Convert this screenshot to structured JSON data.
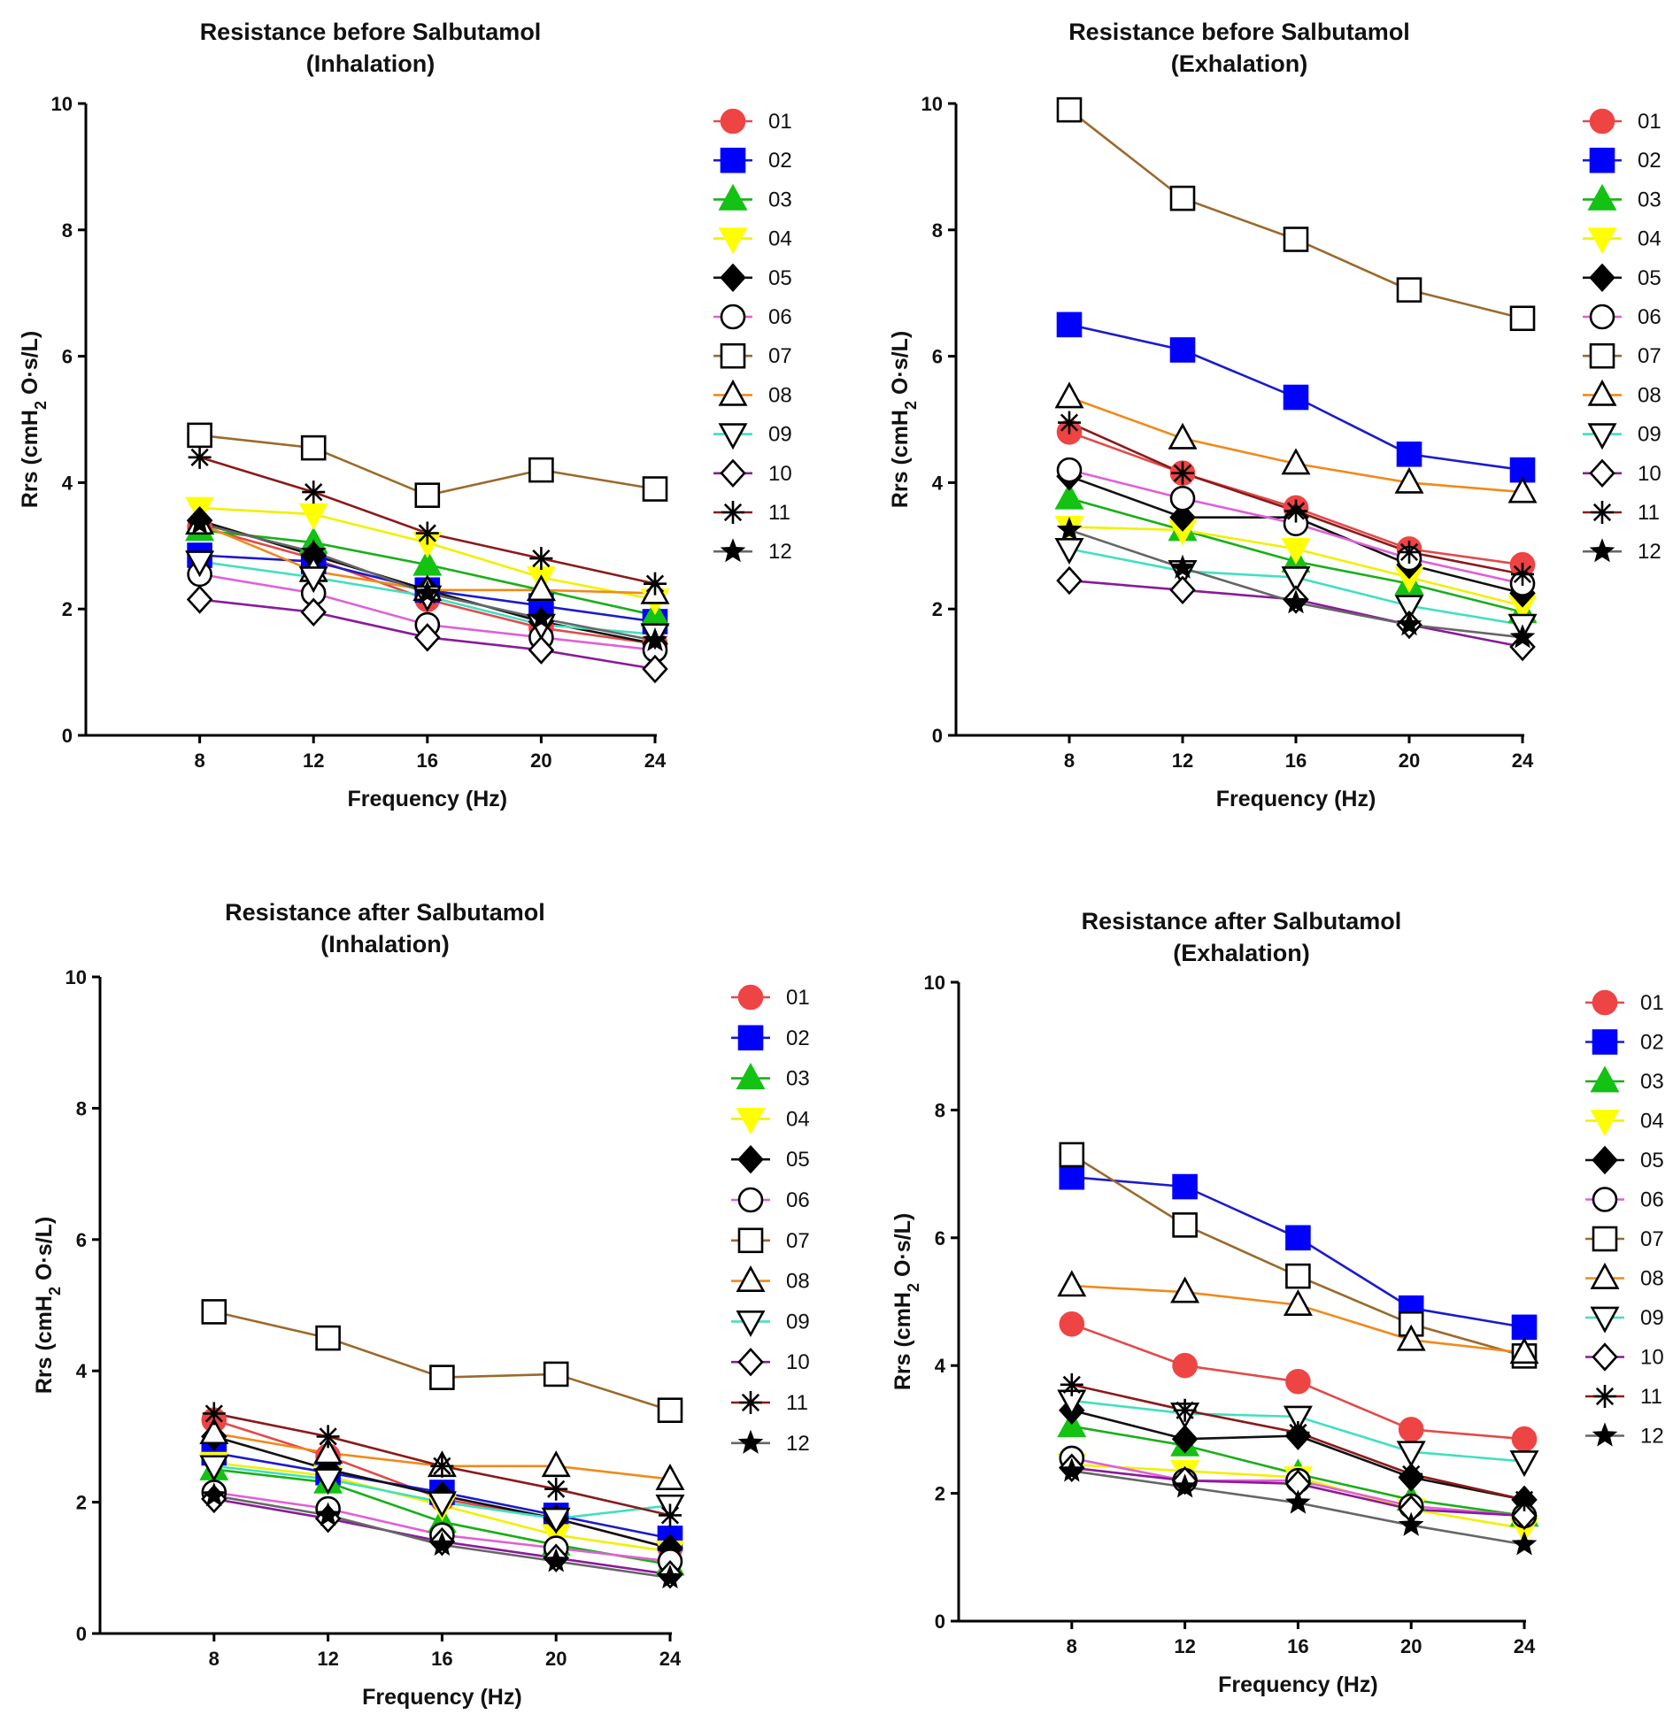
{
  "figure": {
    "ylabel_prefix": "Rrs (cmH",
    "ylabel_sub": "2",
    "ylabel_suffix": " O·s/L)"
  },
  "series_styles": [
    {
      "id": "01",
      "color": "#ef4444",
      "line": "#e24a4a",
      "marker": "circle",
      "filled": true
    },
    {
      "id": "02",
      "color": "#0000ff",
      "line": "#1b1bcc",
      "marker": "square",
      "filled": true
    },
    {
      "id": "03",
      "color": "#13c213",
      "line": "#17b017",
      "marker": "triangle",
      "filled": true
    },
    {
      "id": "04",
      "color": "#ffff00",
      "line": "#f0f000",
      "marker": "triangle-down",
      "filled": true
    },
    {
      "id": "05",
      "color": "#000000",
      "line": "#111111",
      "marker": "diamond",
      "filled": true
    },
    {
      "id": "06",
      "color": "#000000",
      "line": "#e060d8",
      "marker": "circle",
      "filled": false
    },
    {
      "id": "07",
      "color": "#000000",
      "line": "#9b6a2b",
      "marker": "square",
      "filled": false
    },
    {
      "id": "08",
      "color": "#000000",
      "line": "#f08a1a",
      "marker": "triangle",
      "filled": false
    },
    {
      "id": "09",
      "color": "#000000",
      "line": "#40e0c0",
      "marker": "triangle-down",
      "filled": false
    },
    {
      "id": "10",
      "color": "#000000",
      "line": "#8a1a9a",
      "marker": "diamond",
      "filled": false
    },
    {
      "id": "11",
      "color": "#000000",
      "line": "#8b1a1a",
      "marker": "asterisk",
      "filled": false
    },
    {
      "id": "12",
      "color": "#000000",
      "line": "#666666",
      "marker": "star",
      "filled": true
    }
  ],
  "chart_data": [
    {
      "type": "line",
      "title": [
        "Resistance before Salbutamol",
        "(Inhalation)"
      ],
      "xlabel": "Frequency (Hz)",
      "ylabel": "Rrs (cmH2 O·s/L)",
      "x": [
        8,
        12,
        16,
        20,
        24
      ],
      "xlim": [
        4,
        24
      ],
      "ylim": [
        0,
        10
      ],
      "yticks": [
        0,
        2,
        4,
        6,
        8,
        10
      ],
      "legend": "right",
      "series": [
        {
          "name": "01",
          "values": [
            3.3,
            2.8,
            2.15,
            1.7,
            1.45
          ]
        },
        {
          "name": "02",
          "values": [
            2.85,
            2.75,
            2.3,
            2.05,
            1.8
          ]
        },
        {
          "name": "03",
          "values": [
            3.25,
            3.05,
            2.7,
            2.3,
            1.9
          ]
        },
        {
          "name": "04",
          "values": [
            3.6,
            3.5,
            3.05,
            2.5,
            2.15
          ]
        },
        {
          "name": "05",
          "values": [
            3.4,
            2.85,
            2.3,
            1.8,
            1.45
          ]
        },
        {
          "name": "06",
          "values": [
            2.55,
            2.25,
            1.75,
            1.55,
            1.35
          ]
        },
        {
          "name": "07",
          "values": [
            4.75,
            4.55,
            3.8,
            4.2,
            3.9
          ]
        },
        {
          "name": "08",
          "values": [
            3.35,
            2.6,
            2.3,
            2.3,
            2.25
          ]
        },
        {
          "name": "09",
          "values": [
            2.75,
            2.5,
            2.2,
            1.75,
            1.6
          ]
        },
        {
          "name": "10",
          "values": [
            2.15,
            1.95,
            1.55,
            1.35,
            1.05
          ]
        },
        {
          "name": "11",
          "values": [
            4.4,
            3.85,
            3.2,
            2.8,
            2.4
          ]
        },
        {
          "name": "12",
          "values": [
            3.35,
            2.9,
            2.25,
            1.85,
            1.5
          ]
        }
      ]
    },
    {
      "type": "line",
      "title": [
        "Resistance before Salbutamol",
        "(Exhalation)"
      ],
      "xlabel": "Frequency (Hz)",
      "ylabel": "Rrs (cmH2 O·s/L)",
      "x": [
        8,
        12,
        16,
        20,
        24
      ],
      "xlim": [
        4,
        24
      ],
      "ylim": [
        0,
        10
      ],
      "yticks": [
        0,
        2,
        4,
        6,
        8,
        10
      ],
      "legend": "right",
      "series": [
        {
          "name": "01",
          "values": [
            4.8,
            4.15,
            3.6,
            2.95,
            2.7
          ]
        },
        {
          "name": "02",
          "values": [
            6.5,
            6.1,
            5.35,
            4.45,
            4.2
          ]
        },
        {
          "name": "03",
          "values": [
            3.75,
            3.25,
            2.75,
            2.4,
            1.95
          ]
        },
        {
          "name": "04",
          "values": [
            3.3,
            3.25,
            2.95,
            2.5,
            2.05
          ]
        },
        {
          "name": "05",
          "values": [
            4.1,
            3.45,
            3.45,
            2.7,
            2.25
          ]
        },
        {
          "name": "06",
          "values": [
            4.2,
            3.75,
            3.35,
            2.8,
            2.4
          ]
        },
        {
          "name": "07",
          "values": [
            9.9,
            8.5,
            7.85,
            7.05,
            6.6
          ]
        },
        {
          "name": "08",
          "values": [
            5.35,
            4.7,
            4.3,
            4.0,
            3.85
          ]
        },
        {
          "name": "09",
          "values": [
            2.95,
            2.6,
            2.5,
            2.05,
            1.75
          ]
        },
        {
          "name": "10",
          "values": [
            2.45,
            2.3,
            2.15,
            1.75,
            1.4
          ]
        },
        {
          "name": "11",
          "values": [
            4.95,
            4.15,
            3.55,
            2.9,
            2.55
          ]
        },
        {
          "name": "12",
          "values": [
            3.25,
            2.65,
            2.1,
            1.75,
            1.55
          ]
        }
      ]
    },
    {
      "type": "line",
      "title": [
        "Resistance after Salbutamol",
        "(Inhalation)"
      ],
      "xlabel": "Frequency (Hz)",
      "ylabel": "Rrs (cmH2 O·s/L)",
      "x": [
        8,
        12,
        16,
        20,
        24
      ],
      "xlim": [
        4,
        24
      ],
      "ylim": [
        0,
        10
      ],
      "yticks": [
        0,
        2,
        4,
        6,
        8,
        10
      ],
      "legend": "right",
      "series": [
        {
          "name": "01",
          "values": [
            3.25,
            2.7,
            2.05,
            1.75,
            1.3
          ]
        },
        {
          "name": "02",
          "values": [
            2.75,
            2.45,
            2.15,
            1.8,
            1.45
          ]
        },
        {
          "name": "03",
          "values": [
            2.5,
            2.3,
            1.7,
            1.35,
            1.05
          ]
        },
        {
          "name": "04",
          "values": [
            2.6,
            2.4,
            1.95,
            1.5,
            1.25
          ]
        },
        {
          "name": "05",
          "values": [
            3.0,
            2.5,
            2.1,
            1.75,
            1.3
          ]
        },
        {
          "name": "06",
          "values": [
            2.15,
            1.9,
            1.5,
            1.3,
            1.1
          ]
        },
        {
          "name": "07",
          "values": [
            4.9,
            4.5,
            3.9,
            3.95,
            3.4
          ]
        },
        {
          "name": "08",
          "values": [
            3.05,
            2.75,
            2.55,
            2.55,
            2.35
          ]
        },
        {
          "name": "09",
          "values": [
            2.55,
            2.35,
            2.0,
            1.75,
            1.95
          ]
        },
        {
          "name": "10",
          "values": [
            2.05,
            1.75,
            1.4,
            1.15,
            0.9
          ]
        },
        {
          "name": "11",
          "values": [
            3.35,
            3.0,
            2.55,
            2.2,
            1.8
          ]
        },
        {
          "name": "12",
          "values": [
            2.1,
            1.8,
            1.35,
            1.1,
            0.85
          ]
        }
      ]
    },
    {
      "type": "line",
      "title": [
        "Resistance after Salbutamol",
        "(Exhalation)"
      ],
      "xlabel": "Frequency (Hz)",
      "ylabel": "Rrs (cmH2 O·s/L)",
      "x": [
        8,
        12,
        16,
        20,
        24
      ],
      "xlim": [
        4,
        24
      ],
      "ylim": [
        0,
        10
      ],
      "yticks": [
        0,
        2,
        4,
        6,
        8,
        10
      ],
      "legend": "right",
      "series": [
        {
          "name": "01",
          "values": [
            4.65,
            4.0,
            3.75,
            3.0,
            2.85
          ]
        },
        {
          "name": "02",
          "values": [
            6.95,
            6.8,
            6.0,
            4.9,
            4.6
          ]
        },
        {
          "name": "03",
          "values": [
            3.05,
            2.75,
            2.3,
            1.9,
            1.65
          ]
        },
        {
          "name": "04",
          "values": [
            2.45,
            2.35,
            2.25,
            1.75,
            1.45
          ]
        },
        {
          "name": "05",
          "values": [
            3.3,
            2.85,
            2.9,
            2.25,
            1.9
          ]
        },
        {
          "name": "06",
          "values": [
            2.55,
            2.2,
            2.2,
            1.8,
            1.65
          ]
        },
        {
          "name": "07",
          "values": [
            7.3,
            6.2,
            5.4,
            4.65,
            4.15
          ]
        },
        {
          "name": "08",
          "values": [
            5.25,
            5.15,
            4.95,
            4.4,
            4.2
          ]
        },
        {
          "name": "09",
          "values": [
            3.45,
            3.25,
            3.2,
            2.65,
            2.5
          ]
        },
        {
          "name": "10",
          "values": [
            2.4,
            2.2,
            2.15,
            1.75,
            1.65
          ]
        },
        {
          "name": "11",
          "values": [
            3.7,
            3.3,
            2.95,
            2.3,
            1.9
          ]
        },
        {
          "name": "12",
          "values": [
            2.35,
            2.1,
            1.85,
            1.5,
            1.2
          ]
        }
      ]
    }
  ]
}
